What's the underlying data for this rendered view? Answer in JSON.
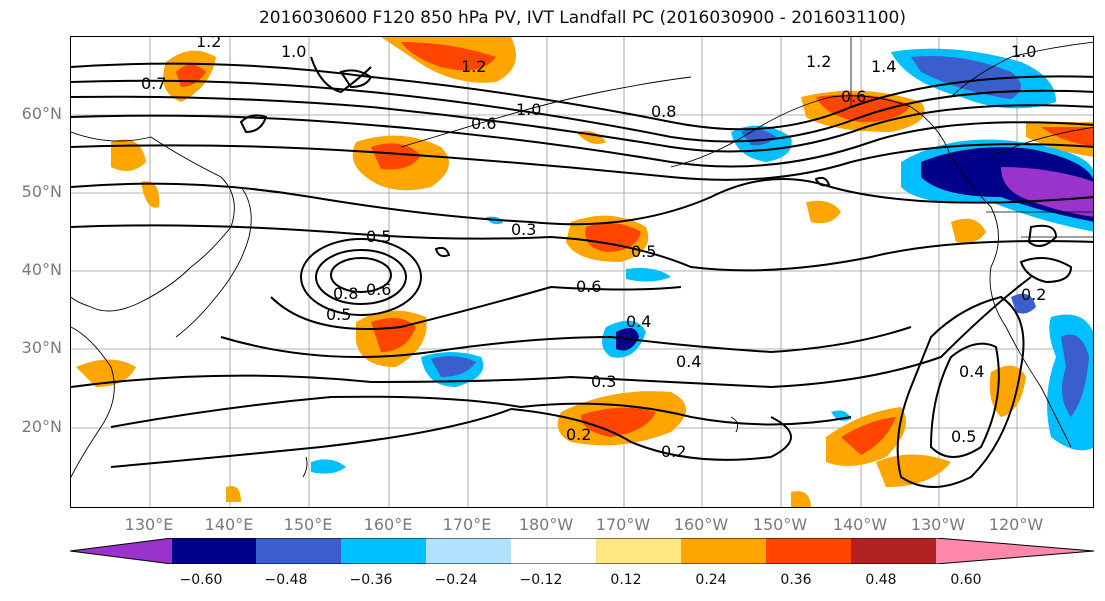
{
  "title": "2016030600 F120 850 hPa PV, IVT Landfall PC (2016030900 - 2016031100)",
  "lat_labels": [
    "60°N",
    "50°N",
    "40°N",
    "30°N",
    "20°N"
  ],
  "lon_labels": [
    "130°E",
    "140°E",
    "150°E",
    "160°E",
    "170°E",
    "180°W",
    "170°W",
    "160°W",
    "150°W",
    "140°W",
    "130°W",
    "120°W"
  ],
  "contour_labels": [
    "1.2",
    "1.0",
    "1.2",
    "1.2",
    "1.4",
    "1.0",
    "1.0",
    "0.6",
    "0.6",
    "0.8",
    "0.7",
    "0.5",
    "0.3",
    "0.5",
    "0.6",
    "0.8",
    "0.6",
    "0.5",
    "0.4",
    "0.4",
    "0.3",
    "0.2",
    "0.2",
    "0.2",
    "0.4",
    "0.5"
  ],
  "colorbar": {
    "ticks": [
      "−0.60",
      "−0.48",
      "−0.36",
      "−0.24",
      "−0.12",
      "0.12",
      "0.24",
      "0.36",
      "0.48",
      "0.60"
    ],
    "colors": [
      "#9933cc",
      "#00008b",
      "#3a5fcd",
      "#00bfff",
      "#b0e2ff",
      "#ffffff",
      "#ffe680",
      "#ffa500",
      "#ff4500",
      "#b22222",
      "#ff88aa"
    ]
  }
}
